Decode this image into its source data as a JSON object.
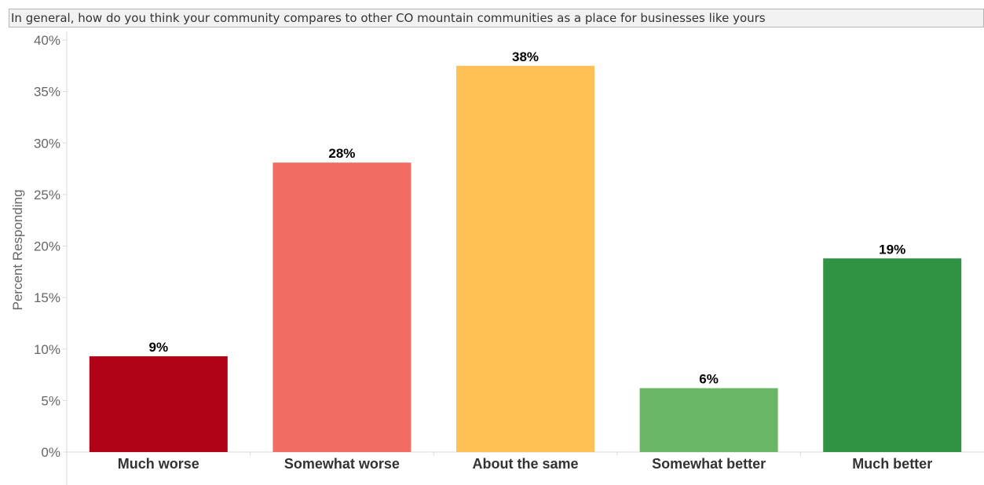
{
  "title": "In general, how do you think your community compares to other CO mountain communities as a place for businesses like yours",
  "chart_data": {
    "type": "bar",
    "title": "In general, how do you think your community compares to other CO mountain communities as a place for businesses like yours",
    "xlabel": "",
    "ylabel": "Percent Responding",
    "ylim": [
      0,
      40
    ],
    "yticks": [
      0,
      5,
      10,
      15,
      20,
      25,
      30,
      35,
      40
    ],
    "ytick_labels": [
      "0%",
      "5%",
      "10%",
      "15%",
      "20%",
      "25%",
      "30%",
      "35%",
      "40%"
    ],
    "categories": [
      "Much worse",
      "Somewhat worse",
      "About the same",
      "Somewhat better",
      "Much better"
    ],
    "values": [
      9.3,
      28.1,
      37.5,
      6.2,
      18.8
    ],
    "data_labels": [
      "9%",
      "28%",
      "38%",
      "6%",
      "19%"
    ],
    "colors": [
      "#b10318",
      "#f26c64",
      "#ffc156",
      "#69b764",
      "#309343"
    ],
    "grid": false,
    "legend": "none"
  }
}
